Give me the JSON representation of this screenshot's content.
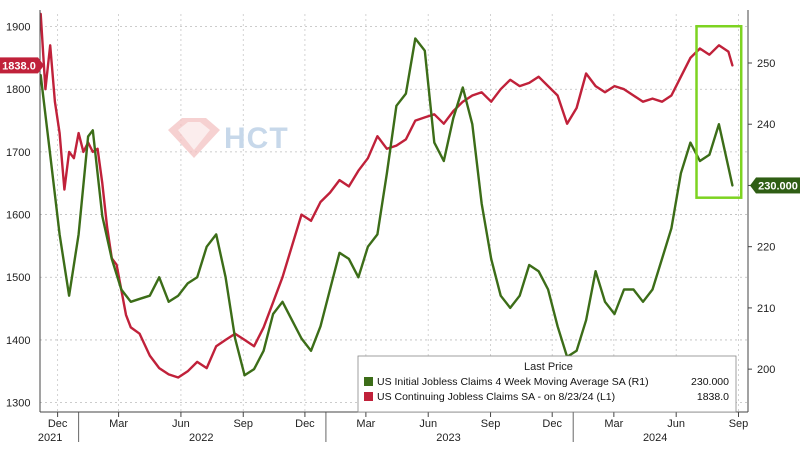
{
  "chart_data": {
    "type": "line",
    "title": "",
    "xlabel": "",
    "x_axis": {
      "range": [
        "2021-11-05",
        "2024-09-15"
      ],
      "month_ticks": [
        {
          "date": "2021-12-01",
          "label": "Dec"
        },
        {
          "date": "2022-03-01",
          "label": "Mar"
        },
        {
          "date": "2022-06-01",
          "label": "Jun"
        },
        {
          "date": "2022-09-01",
          "label": "Sep"
        },
        {
          "date": "2022-12-01",
          "label": "Dec"
        },
        {
          "date": "2023-03-01",
          "label": "Mar"
        },
        {
          "date": "2023-06-01",
          "label": "Jun"
        },
        {
          "date": "2023-09-01",
          "label": "Sep"
        },
        {
          "date": "2023-12-01",
          "label": "Dec"
        },
        {
          "date": "2024-03-01",
          "label": "Mar"
        },
        {
          "date": "2024-06-01",
          "label": "Jun"
        },
        {
          "date": "2024-09-01",
          "label": "Sep"
        }
      ],
      "years": [
        {
          "label": "2021",
          "date": "2021-11-20"
        },
        {
          "label": "2022",
          "date": "2022-07-01"
        },
        {
          "label": "2023",
          "date": "2023-07-01"
        },
        {
          "label": "2024",
          "date": "2024-05-01"
        }
      ],
      "year_boundaries": [
        "2022-01-01",
        "2023-01-01",
        "2024-01-01"
      ]
    },
    "y_left": {
      "range": [
        1285,
        1920
      ],
      "ticks": [
        1300,
        1400,
        1500,
        1600,
        1700,
        1800,
        1900
      ],
      "tick_labels": [
        "1300",
        "1400",
        "1500",
        "1600",
        "1700",
        "1800",
        "1900"
      ]
    },
    "y_right": {
      "range": [
        193,
        258
      ],
      "ticks": [
        200,
        210,
        220,
        230,
        240,
        250
      ],
      "tick_labels": [
        "200",
        "210",
        "220",
        "230",
        "240",
        "250"
      ]
    },
    "grid": true,
    "legend_position": "bottom-right",
    "series": [
      {
        "name": "US Continuing Jobless Claims SA - on 8/23/24 (L1)",
        "axis": "left",
        "color": "#c0213a",
        "last_value": "1838.0",
        "points": [
          [
            "2021-11-06",
            1920
          ],
          [
            "2021-11-13",
            1800
          ],
          [
            "2021-11-20",
            1870
          ],
          [
            "2021-11-27",
            1780
          ],
          [
            "2021-12-04",
            1730
          ],
          [
            "2021-12-11",
            1640
          ],
          [
            "2021-12-18",
            1700
          ],
          [
            "2021-12-25",
            1690
          ],
          [
            "2022-01-01",
            1730
          ],
          [
            "2022-01-08",
            1700
          ],
          [
            "2022-01-15",
            1715
          ],
          [
            "2022-01-22",
            1700
          ],
          [
            "2022-01-29",
            1705
          ],
          [
            "2022-02-05",
            1650
          ],
          [
            "2022-02-12",
            1580
          ],
          [
            "2022-02-19",
            1530
          ],
          [
            "2022-02-26",
            1520
          ],
          [
            "2022-03-05",
            1480
          ],
          [
            "2022-03-12",
            1440
          ],
          [
            "2022-03-19",
            1420
          ],
          [
            "2022-04-01",
            1410
          ],
          [
            "2022-04-16",
            1375
          ],
          [
            "2022-04-30",
            1355
          ],
          [
            "2022-05-14",
            1345
          ],
          [
            "2022-05-28",
            1340
          ],
          [
            "2022-06-11",
            1350
          ],
          [
            "2022-06-25",
            1365
          ],
          [
            "2022-07-09",
            1355
          ],
          [
            "2022-07-23",
            1390
          ],
          [
            "2022-08-06",
            1400
          ],
          [
            "2022-08-20",
            1410
          ],
          [
            "2022-09-03",
            1400
          ],
          [
            "2022-09-17",
            1390
          ],
          [
            "2022-10-01",
            1420
          ],
          [
            "2022-10-15",
            1460
          ],
          [
            "2022-10-29",
            1500
          ],
          [
            "2022-11-12",
            1550
          ],
          [
            "2022-11-26",
            1600
          ],
          [
            "2022-12-10",
            1590
          ],
          [
            "2022-12-24",
            1620
          ],
          [
            "2023-01-07",
            1635
          ],
          [
            "2023-01-21",
            1655
          ],
          [
            "2023-02-04",
            1645
          ],
          [
            "2023-02-18",
            1670
          ],
          [
            "2023-03-04",
            1690
          ],
          [
            "2023-03-18",
            1725
          ],
          [
            "2023-04-01",
            1705
          ],
          [
            "2023-04-15",
            1710
          ],
          [
            "2023-04-29",
            1720
          ],
          [
            "2023-05-13",
            1750
          ],
          [
            "2023-05-27",
            1755
          ],
          [
            "2023-06-10",
            1760
          ],
          [
            "2023-06-24",
            1745
          ],
          [
            "2023-07-08",
            1765
          ],
          [
            "2023-07-22",
            1780
          ],
          [
            "2023-08-05",
            1790
          ],
          [
            "2023-08-19",
            1795
          ],
          [
            "2023-09-02",
            1780
          ],
          [
            "2023-09-16",
            1800
          ],
          [
            "2023-09-30",
            1815
          ],
          [
            "2023-10-14",
            1805
          ],
          [
            "2023-10-28",
            1810
          ],
          [
            "2023-11-11",
            1820
          ],
          [
            "2023-11-25",
            1805
          ],
          [
            "2023-12-09",
            1790
          ],
          [
            "2023-12-23",
            1745
          ],
          [
            "2024-01-06",
            1770
          ],
          [
            "2024-01-20",
            1825
          ],
          [
            "2024-02-03",
            1805
          ],
          [
            "2024-02-17",
            1795
          ],
          [
            "2024-03-02",
            1805
          ],
          [
            "2024-03-16",
            1800
          ],
          [
            "2024-03-30",
            1790
          ],
          [
            "2024-04-13",
            1780
          ],
          [
            "2024-04-27",
            1785
          ],
          [
            "2024-05-11",
            1780
          ],
          [
            "2024-05-25",
            1790
          ],
          [
            "2024-06-08",
            1820
          ],
          [
            "2024-06-22",
            1850
          ],
          [
            "2024-07-06",
            1865
          ],
          [
            "2024-07-20",
            1855
          ],
          [
            "2024-08-03",
            1870
          ],
          [
            "2024-08-17",
            1860
          ],
          [
            "2024-08-23",
            1838
          ]
        ]
      },
      {
        "name": "US Initial Jobless Claims 4 Week Moving Average SA (R1)",
        "axis": "right",
        "color": "#3c6d18",
        "last_value": "230.000",
        "points": [
          [
            "2021-11-06",
            248
          ],
          [
            "2021-11-20",
            235
          ],
          [
            "2021-12-04",
            222
          ],
          [
            "2021-12-18",
            212
          ],
          [
            "2022-01-01",
            222
          ],
          [
            "2022-01-15",
            238
          ],
          [
            "2022-01-22",
            239
          ],
          [
            "2022-02-05",
            225
          ],
          [
            "2022-02-19",
            218
          ],
          [
            "2022-03-05",
            213
          ],
          [
            "2022-03-19",
            211
          ],
          [
            "2022-04-02",
            211.5
          ],
          [
            "2022-04-16",
            212
          ],
          [
            "2022-04-30",
            215
          ],
          [
            "2022-05-14",
            211
          ],
          [
            "2022-05-28",
            212
          ],
          [
            "2022-06-11",
            214
          ],
          [
            "2022-06-25",
            215
          ],
          [
            "2022-07-09",
            220
          ],
          [
            "2022-07-23",
            222
          ],
          [
            "2022-08-06",
            215
          ],
          [
            "2022-08-20",
            205
          ],
          [
            "2022-09-03",
            199
          ],
          [
            "2022-09-17",
            200
          ],
          [
            "2022-10-01",
            203
          ],
          [
            "2022-10-15",
            209
          ],
          [
            "2022-10-29",
            211
          ],
          [
            "2022-11-12",
            208
          ],
          [
            "2022-11-26",
            205
          ],
          [
            "2022-12-10",
            203
          ],
          [
            "2022-12-24",
            207
          ],
          [
            "2023-01-07",
            213
          ],
          [
            "2023-01-21",
            219
          ],
          [
            "2023-02-04",
            218
          ],
          [
            "2023-02-18",
            215
          ],
          [
            "2023-03-04",
            220
          ],
          [
            "2023-03-18",
            222
          ],
          [
            "2023-04-01",
            232
          ],
          [
            "2023-04-15",
            243
          ],
          [
            "2023-04-29",
            245
          ],
          [
            "2023-05-13",
            254
          ],
          [
            "2023-05-27",
            252
          ],
          [
            "2023-06-10",
            237
          ],
          [
            "2023-06-24",
            234
          ],
          [
            "2023-07-08",
            241
          ],
          [
            "2023-07-22",
            246
          ],
          [
            "2023-08-05",
            240
          ],
          [
            "2023-08-19",
            227
          ],
          [
            "2023-09-02",
            218
          ],
          [
            "2023-09-16",
            212
          ],
          [
            "2023-09-30",
            210
          ],
          [
            "2023-10-14",
            212
          ],
          [
            "2023-10-28",
            217
          ],
          [
            "2023-11-11",
            216
          ],
          [
            "2023-11-25",
            213
          ],
          [
            "2023-12-09",
            207
          ],
          [
            "2023-12-23",
            202
          ],
          [
            "2024-01-06",
            203
          ],
          [
            "2024-01-20",
            208
          ],
          [
            "2024-02-03",
            216
          ],
          [
            "2024-02-17",
            211
          ],
          [
            "2024-03-02",
            209
          ],
          [
            "2024-03-16",
            213
          ],
          [
            "2024-03-30",
            213
          ],
          [
            "2024-04-13",
            211
          ],
          [
            "2024-04-27",
            213
          ],
          [
            "2024-05-11",
            218
          ],
          [
            "2024-05-25",
            223
          ],
          [
            "2024-06-08",
            232
          ],
          [
            "2024-06-22",
            237
          ],
          [
            "2024-07-06",
            234
          ],
          [
            "2024-07-20",
            235
          ],
          [
            "2024-08-03",
            240
          ],
          [
            "2024-08-17",
            233
          ],
          [
            "2024-08-23",
            230
          ]
        ]
      }
    ],
    "legend": {
      "title": "Last Price",
      "entries": [
        {
          "label": "US Initial Jobless Claims 4 Week Moving Average SA  (R1)",
          "value": "230.000",
          "color": "#3c6d18"
        },
        {
          "label": "US Continuing Jobless Claims SA  -  on 8/23/24  (L1)",
          "value": "1838.0",
          "color": "#c0213a"
        }
      ]
    },
    "annotations": {
      "highlight_box": {
        "x_range": [
          "2024-07-01",
          "2024-09-05"
        ],
        "y_right_range": [
          228,
          256
        ],
        "color": "#7dd321"
      },
      "left_badge": {
        "value": "1838.0",
        "color": "#c0213a"
      },
      "right_badge": {
        "value": "230.000",
        "color": "#2f5e14"
      }
    },
    "watermark": {
      "text": "HCT",
      "color": "#c7d8ea",
      "accent_color": "#e9a9a9"
    }
  }
}
